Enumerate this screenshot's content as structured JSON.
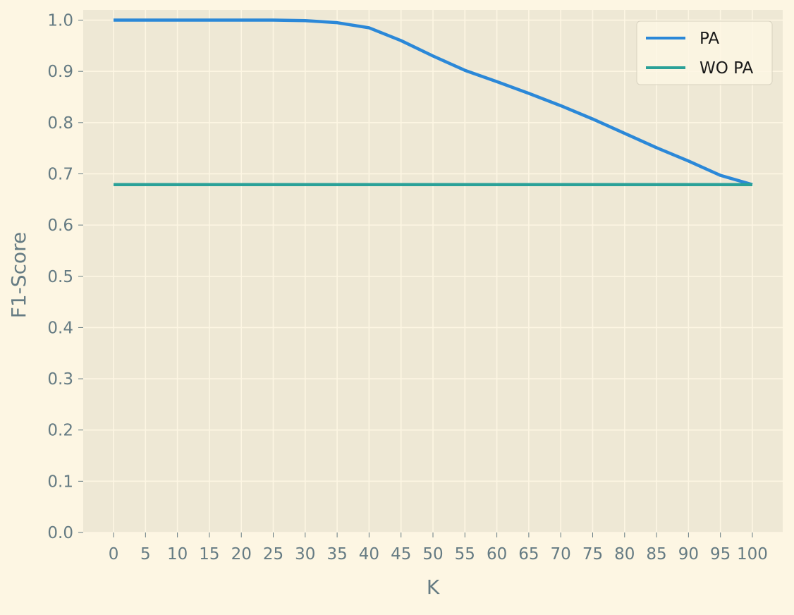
{
  "chart_data": {
    "type": "line",
    "xlabel": "K",
    "ylabel": "F1-Score",
    "xlim": [
      -4.75,
      104.75
    ],
    "ylim": [
      0.0,
      1.02
    ],
    "x": [
      0,
      5,
      10,
      15,
      20,
      25,
      30,
      35,
      40,
      45,
      50,
      55,
      60,
      65,
      70,
      75,
      80,
      85,
      90,
      95,
      100
    ],
    "x_ticks": [
      0,
      5,
      10,
      15,
      20,
      25,
      30,
      35,
      40,
      45,
      50,
      55,
      60,
      65,
      70,
      75,
      80,
      85,
      90,
      95,
      100
    ],
    "y_ticks": [
      "0.0",
      "0.1",
      "0.2",
      "0.3",
      "0.4",
      "0.5",
      "0.6",
      "0.7",
      "0.8",
      "0.9",
      "1.0"
    ],
    "grid": true,
    "legend_position": "top-right",
    "series": [
      {
        "name": "PA",
        "color": "#2b88d8",
        "values": [
          1.0,
          1.0,
          1.0,
          1.0,
          1.0,
          1.0,
          0.999,
          0.995,
          0.985,
          0.96,
          0.93,
          0.902,
          0.88,
          0.857,
          0.833,
          0.807,
          0.779,
          0.751,
          0.725,
          0.697,
          0.679
        ]
      },
      {
        "name": "WO PA",
        "color": "#2aa198",
        "values": [
          0.679,
          0.679,
          0.679,
          0.679,
          0.679,
          0.679,
          0.679,
          0.679,
          0.679,
          0.679,
          0.679,
          0.679,
          0.679,
          0.679,
          0.679,
          0.679,
          0.679,
          0.679,
          0.679,
          0.679,
          0.679
        ]
      }
    ]
  },
  "colors": {
    "figure_background": "#fdf6e3",
    "plot_background": "#eee8d5",
    "grid": "#fdf6e3",
    "tick_text": "#657b83"
  }
}
